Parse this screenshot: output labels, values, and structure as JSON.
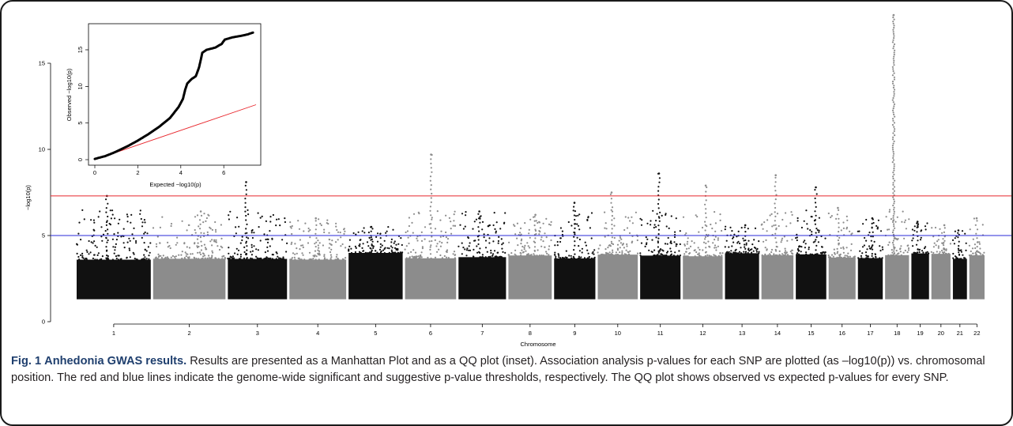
{
  "figure": {
    "label": "Fig. 1",
    "title": "Anhedonia GWAS results.",
    "caption": "Results are presented as a Manhattan Plot and as a QQ plot (inset). Association analysis p-values for each SNP are plotted (as –log10(p)) vs. chromosomal position. The red and blue lines indicate the genome-wide significant and suggestive p-value thresholds, respectively. The QQ plot shows observed vs expected p-values for every SNP."
  },
  "colors": {
    "dark_points": "#111111",
    "light_points": "#8c8c8c",
    "significant_line": "#e8262c",
    "suggestive_line": "#2a2ad8",
    "qq_null_line": "#e8262c",
    "caption_title": "#1f3f6e"
  },
  "chart_data": [
    {
      "type": "scatter",
      "kind": "manhattan",
      "xlabel": "Chromosome",
      "ylabel": "−log10(p)",
      "ylim": [
        0,
        18
      ],
      "yticks": [
        0,
        5,
        10,
        15
      ],
      "xticks": [
        "1",
        "2",
        "3",
        "4",
        "5",
        "6",
        "7",
        "8",
        "9",
        "10",
        "11",
        "12",
        "13",
        "14",
        "15",
        "16",
        "17",
        "18",
        "19",
        "20",
        "21",
        "22"
      ],
      "hlines": [
        {
          "role": "genome-wide significant",
          "y": 7.3,
          "color": "#e8262c"
        },
        {
          "role": "suggestive",
          "y": 5.0,
          "color": "#2a2ad8"
        }
      ],
      "baseline_min": 1.3,
      "chromosome_max_values": [
        {
          "chromosome": "1",
          "max": 7.3
        },
        {
          "chromosome": "2",
          "max": 6.4
        },
        {
          "chromosome": "3",
          "max": 8.1
        },
        {
          "chromosome": "4",
          "max": 6.0
        },
        {
          "chromosome": "5",
          "max": 5.5
        },
        {
          "chromosome": "6",
          "max": 9.7
        },
        {
          "chromosome": "7",
          "max": 6.4
        },
        {
          "chromosome": "8",
          "max": 6.2
        },
        {
          "chromosome": "9",
          "max": 6.9
        },
        {
          "chromosome": "10",
          "max": 7.5
        },
        {
          "chromosome": "11",
          "max": 8.6
        },
        {
          "chromosome": "12",
          "max": 7.9
        },
        {
          "chromosome": "13",
          "max": 5.6
        },
        {
          "chromosome": "14",
          "max": 8.5
        },
        {
          "chromosome": "15",
          "max": 7.8
        },
        {
          "chromosome": "16",
          "max": 6.6
        },
        {
          "chromosome": "17",
          "max": 6.0
        },
        {
          "chromosome": "18",
          "max": 17.8
        },
        {
          "chromosome": "19",
          "max": 5.8
        },
        {
          "chromosome": "20",
          "max": 5.6
        },
        {
          "chromosome": "21",
          "max": 5.3
        },
        {
          "chromosome": "22",
          "max": 6.0
        }
      ]
    },
    {
      "type": "scatter",
      "kind": "qq",
      "xlabel": "Expected −log10(p)",
      "ylabel": "Observed −log10(p)",
      "xlim": [
        0,
        7.5
      ],
      "ylim": [
        0,
        17.7
      ],
      "xticks": [
        0,
        2,
        4,
        6
      ],
      "yticks": [
        0,
        5,
        10,
        15
      ],
      "null_line": {
        "slope": 1,
        "color": "#e8262c"
      },
      "points": [
        [
          0,
          0.1
        ],
        [
          0.5,
          0.5
        ],
        [
          1,
          1.1
        ],
        [
          1.5,
          1.8
        ],
        [
          2,
          2.6
        ],
        [
          2.5,
          3.5
        ],
        [
          3,
          4.5
        ],
        [
          3.5,
          5.7
        ],
        [
          3.9,
          7.2
        ],
        [
          4.1,
          8.3
        ],
        [
          4.2,
          9.5
        ],
        [
          4.3,
          10.4
        ],
        [
          4.5,
          11.0
        ],
        [
          4.7,
          11.4
        ],
        [
          4.85,
          12.6
        ],
        [
          4.95,
          13.9
        ],
        [
          5.0,
          14.6
        ],
        [
          5.2,
          15.0
        ],
        [
          5.6,
          15.3
        ],
        [
          5.9,
          15.8
        ],
        [
          6.05,
          16.4
        ],
        [
          6.4,
          16.7
        ],
        [
          6.8,
          16.9
        ],
        [
          7.1,
          17.1
        ],
        [
          7.4,
          17.4
        ]
      ]
    }
  ]
}
